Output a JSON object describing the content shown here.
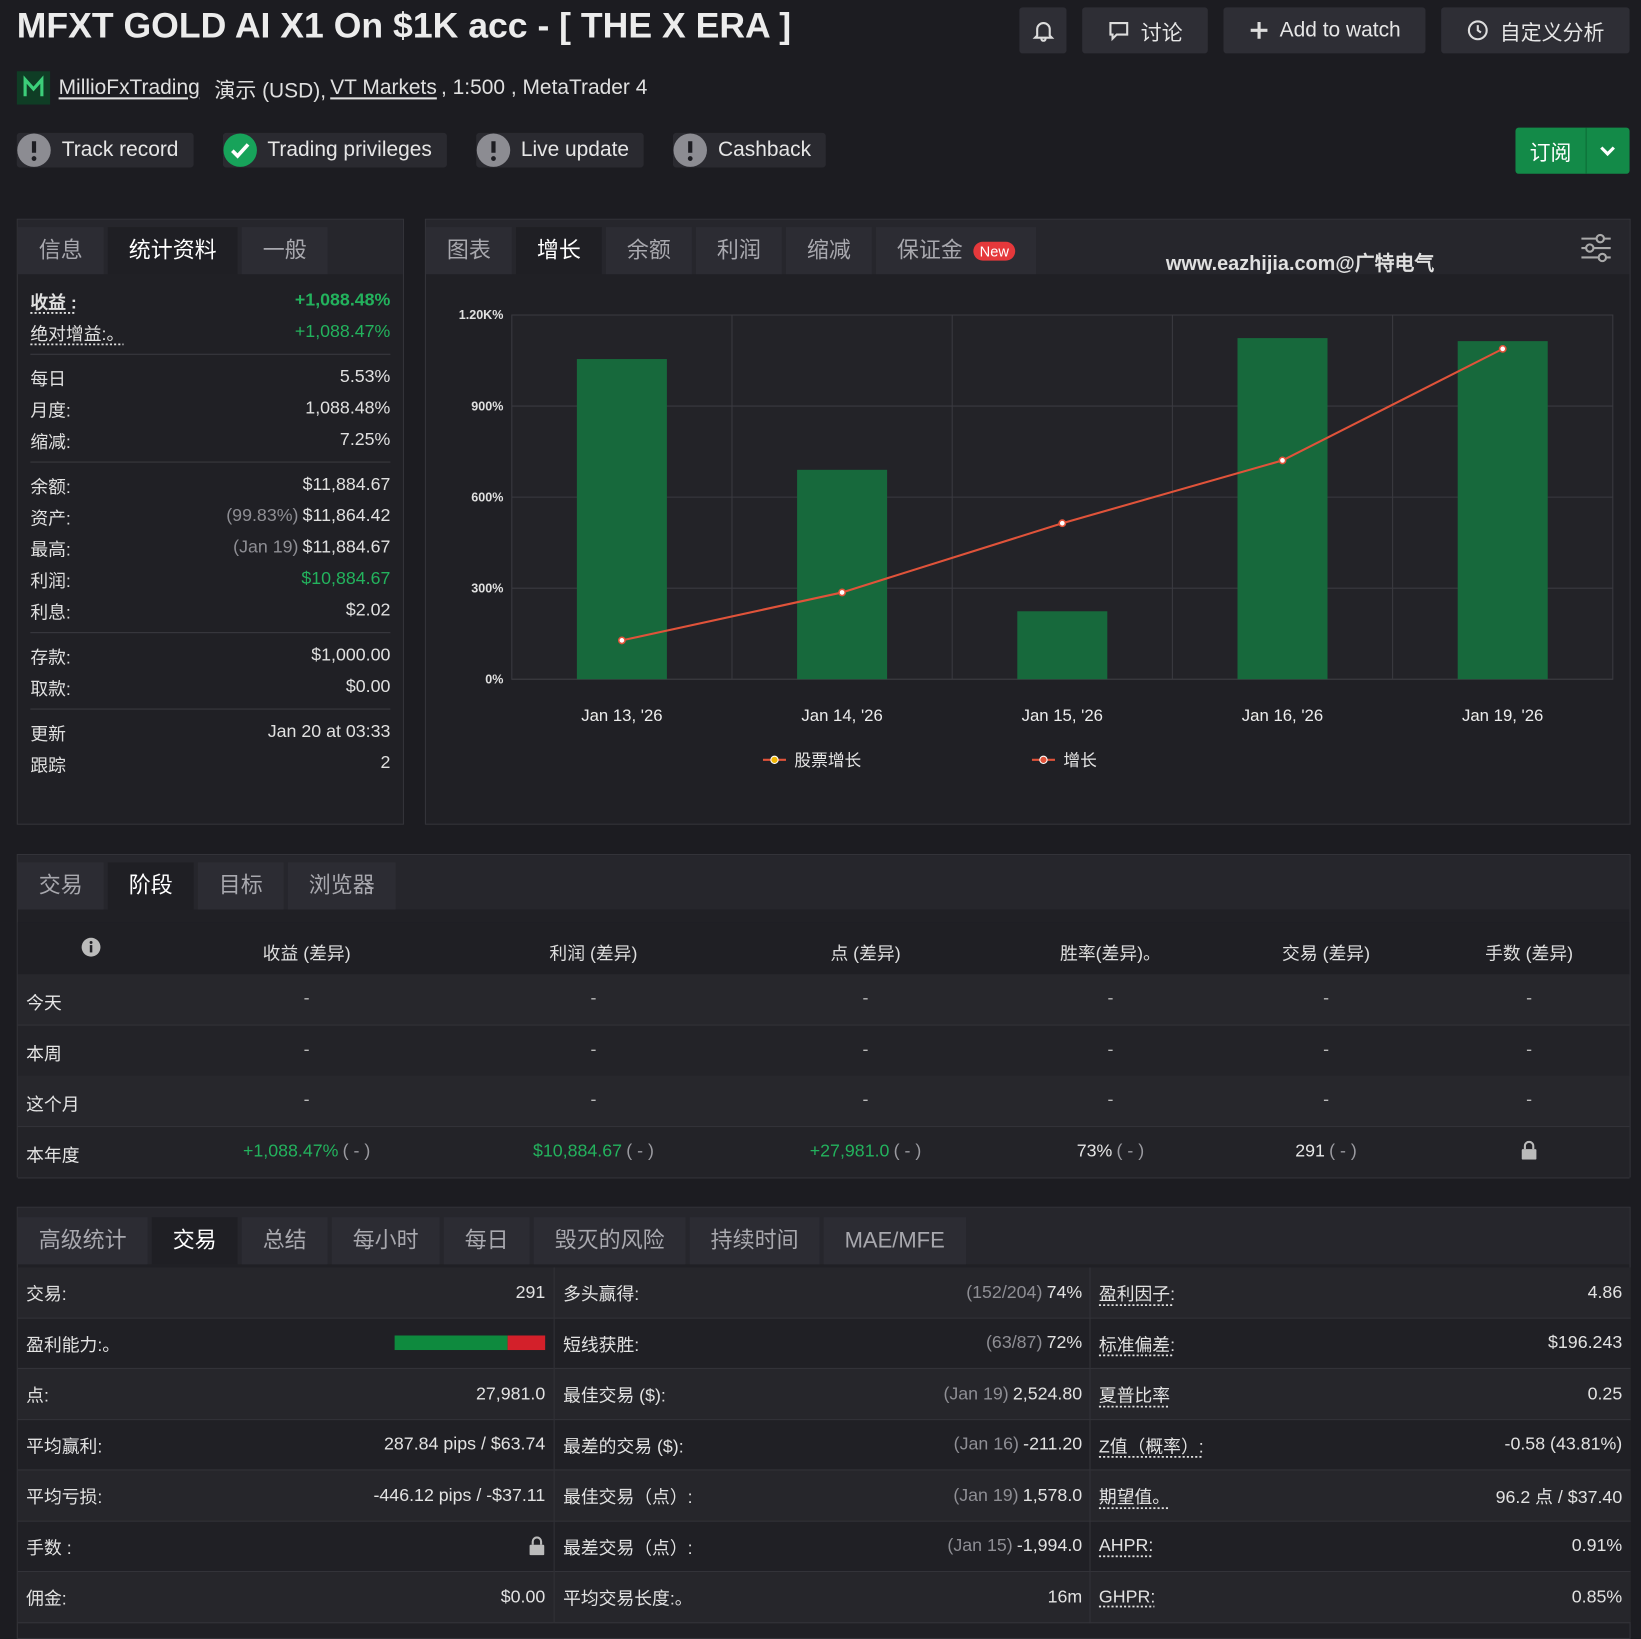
{
  "header": {
    "title": "MFXT GOLD AI X1 On $1K acc - [ THE X ERA ]",
    "buttons": [
      "讨论",
      "Add to watch",
      "自定义分析"
    ],
    "owner": "MillioFxTrading",
    "account_type": "演示 (USD),",
    "broker": "VT Markets",
    "account_details": ", 1:500 , MetaTrader 4",
    "subscribe": "订阅"
  },
  "badges": [
    {
      "label": "Track record",
      "status": "warning"
    },
    {
      "label": "Trading privileges",
      "status": "ok"
    },
    {
      "label": "Live update",
      "status": "warning"
    },
    {
      "label": "Cashback",
      "status": "warning"
    }
  ],
  "stats": {
    "tabs": [
      "信息",
      "统计资料",
      "一般"
    ],
    "active_tab": 1,
    "groups": [
      [
        {
          "label": "收益 :",
          "value": "+1,088.48%",
          "highlight": true,
          "emphasis": true,
          "underline": true
        },
        {
          "label": "绝对增益:。",
          "value": "+1,088.47%",
          "highlight": true,
          "underline": true
        }
      ],
      [
        {
          "label": "每日",
          "value": "5.53%"
        },
        {
          "label": "月度:",
          "value": "1,088.48%"
        },
        {
          "label": "缩减:",
          "value": "7.25%"
        }
      ],
      [
        {
          "label": "余额:",
          "value": "$11,884.67"
        },
        {
          "label": "资产:",
          "note": "(99.83%)",
          "value": "$11,864.42"
        },
        {
          "label": "最高:",
          "note": "(Jan 19)",
          "value": "$11,884.67"
        },
        {
          "label": "利润:",
          "value": "$10,884.67",
          "highlight": true
        },
        {
          "label": "利息:",
          "value": "$2.02"
        }
      ],
      [
        {
          "label": "存款:",
          "value": "$1,000.00"
        },
        {
          "label": "取款:",
          "value": "$0.00"
        }
      ],
      [
        {
          "label": "更新",
          "value": "Jan 20 at 03:33"
        },
        {
          "label": "跟踪",
          "value": "2"
        }
      ]
    ]
  },
  "chart_panel": {
    "tabs": [
      "图表",
      "增长",
      "余额",
      "利润",
      "缩减",
      "保证金"
    ],
    "active_tab": 1,
    "new_badge": "New",
    "watermark": "www.eazhijia.com@广特电气"
  },
  "chart_data": {
    "type": "bar",
    "categories": [
      "Jan 13, '26",
      "Jan 14, '26",
      "Jan 15, '26",
      "Jan 16, '26",
      "Jan 19, '26"
    ],
    "series": [
      {
        "name": "股票增长",
        "type": "bar",
        "color": "#f2b705",
        "bar_color": "#17693c",
        "values": [
          1055,
          690,
          224,
          1124,
          1114
        ]
      },
      {
        "name": "增长",
        "type": "line",
        "color": "#e0533a",
        "values": [
          128,
          286,
          514,
          721,
          1088.48
        ]
      }
    ],
    "ylim": [
      0,
      1200
    ],
    "yticks": [
      {
        "value": 0,
        "label": "0%"
      },
      {
        "value": 300,
        "label": "300%"
      },
      {
        "value": 600,
        "label": "600%"
      },
      {
        "value": 900,
        "label": "900%"
      },
      {
        "value": 1200,
        "label": "1.20K%"
      }
    ],
    "grid": true
  },
  "periods": {
    "tabs": [
      "交易",
      "阶段",
      "目标",
      "浏览器"
    ],
    "active_tab": 1,
    "columns": [
      "收益 (差异)",
      "利润 (差异)",
      "点 (差异)",
      "胜率(差异)。",
      "交易 (差异)",
      "手数 (差异)"
    ],
    "rows": [
      {
        "label": "今天",
        "cells": [
          "-",
          "-",
          "-",
          "-",
          "-",
          "-"
        ]
      },
      {
        "label": "本周",
        "cells": [
          "-",
          "-",
          "-",
          "-",
          "-",
          "-"
        ]
      },
      {
        "label": "这个月",
        "cells": [
          "-",
          "-",
          "-",
          "-",
          "-",
          "-"
        ]
      },
      {
        "label": "本年度",
        "cells": [
          {
            "value": "+1,088.47%",
            "diff": "( - )",
            "highlight": true
          },
          {
            "value": "$10,884.67",
            "diff": "( - )",
            "highlight": true
          },
          {
            "value": "+27,981.0",
            "diff": "( - )",
            "highlight": true
          },
          {
            "value": "73%",
            "diff": "( - )"
          },
          {
            "value": "291",
            "diff": "( - )"
          },
          null
        ]
      }
    ]
  },
  "advanced": {
    "tabs": [
      "高级统计",
      "交易",
      "总结",
      "每小时",
      "每日",
      "毁灭的风险",
      "持续时间",
      "MAE/MFE"
    ],
    "active_tab": 1,
    "columns": [
      [
        {
          "label": "交易:",
          "value": "291"
        },
        {
          "label": "盈利能力:。",
          "bar": 75
        },
        {
          "label": "点:",
          "value": "27,981.0"
        },
        {
          "label": "平均赢利:",
          "value": "287.84 pips / $63.74"
        },
        {
          "label": "平均亏损:",
          "value": "-446.12 pips / -$37.11"
        },
        {
          "label": "手数 :",
          "value": null
        },
        {
          "label": "佣金:",
          "value": "$0.00"
        }
      ],
      [
        {
          "label": "多头赢得:",
          "note": "(152/204)",
          "value": "74%"
        },
        {
          "label": "短线获胜:",
          "note": "(63/87)",
          "value": "72%"
        },
        {
          "label": "最佳交易 ($):",
          "note": "(Jan 19)",
          "value": "2,524.80"
        },
        {
          "label": "最差的交易 ($):",
          "note": "(Jan 16)",
          "value": "-211.20"
        },
        {
          "label": "最佳交易（点）:",
          "note": "(Jan 19)",
          "value": "1,578.0"
        },
        {
          "label": "最差交易（点）:",
          "note": "(Jan 15)",
          "value": "-1,994.0"
        },
        {
          "label": "平均交易长度:。",
          "value": "16m"
        }
      ],
      [
        {
          "label": "盈利因子:",
          "value": "4.86",
          "underline": true
        },
        {
          "label": "标准偏差:",
          "value": "$196.243",
          "underline": true
        },
        {
          "label": "夏普比率",
          "value": "0.25",
          "underline": true
        },
        {
          "label": "Z值（概率）:",
          "value": "-0.58 (43.81%)",
          "underline": true
        },
        {
          "label": "期望值。",
          "value": "96.2 点 / $37.40",
          "underline": true
        },
        {
          "label": "AHPR:",
          "value": "0.91%",
          "underline": true
        },
        {
          "label": "GHPR:",
          "value": "0.85%",
          "underline": true
        }
      ]
    ]
  }
}
